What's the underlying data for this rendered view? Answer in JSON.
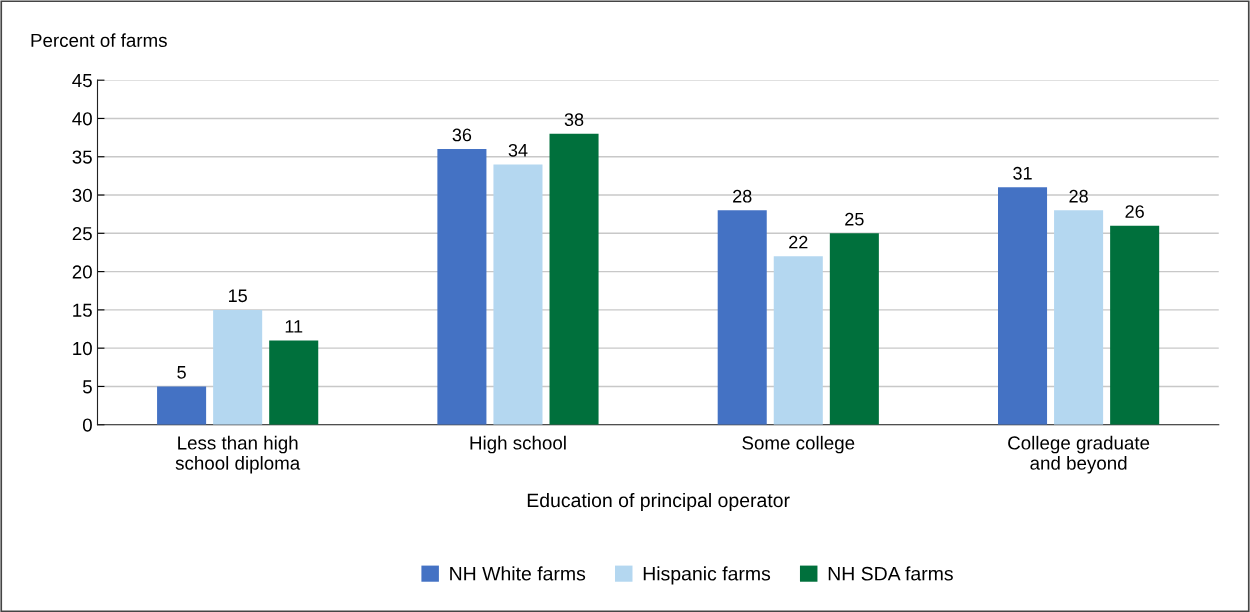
{
  "chart_data": {
    "type": "bar",
    "ylabel": "Percent of farms",
    "xlabel": "Education of principal operator",
    "categories": [
      "Less than high\nschool diploma",
      "High school",
      "Some college",
      "College graduate\nand beyond"
    ],
    "series": [
      {
        "name": "NH White farms",
        "color": "#4472c4",
        "values": [
          5,
          36,
          28,
          31
        ]
      },
      {
        "name": "Hispanic farms",
        "color": "#b4d7f0",
        "values": [
          15,
          34,
          22,
          28
        ]
      },
      {
        "name": "NH SDA farms",
        "color": "#00703c",
        "values": [
          11,
          38,
          25,
          26
        ]
      }
    ],
    "ylim": [
      0,
      45
    ],
    "yticks": [
      0,
      5,
      10,
      15,
      20,
      25,
      30,
      35,
      40,
      45
    ],
    "grid": "y",
    "legend": "bottom",
    "data_labels": true
  }
}
